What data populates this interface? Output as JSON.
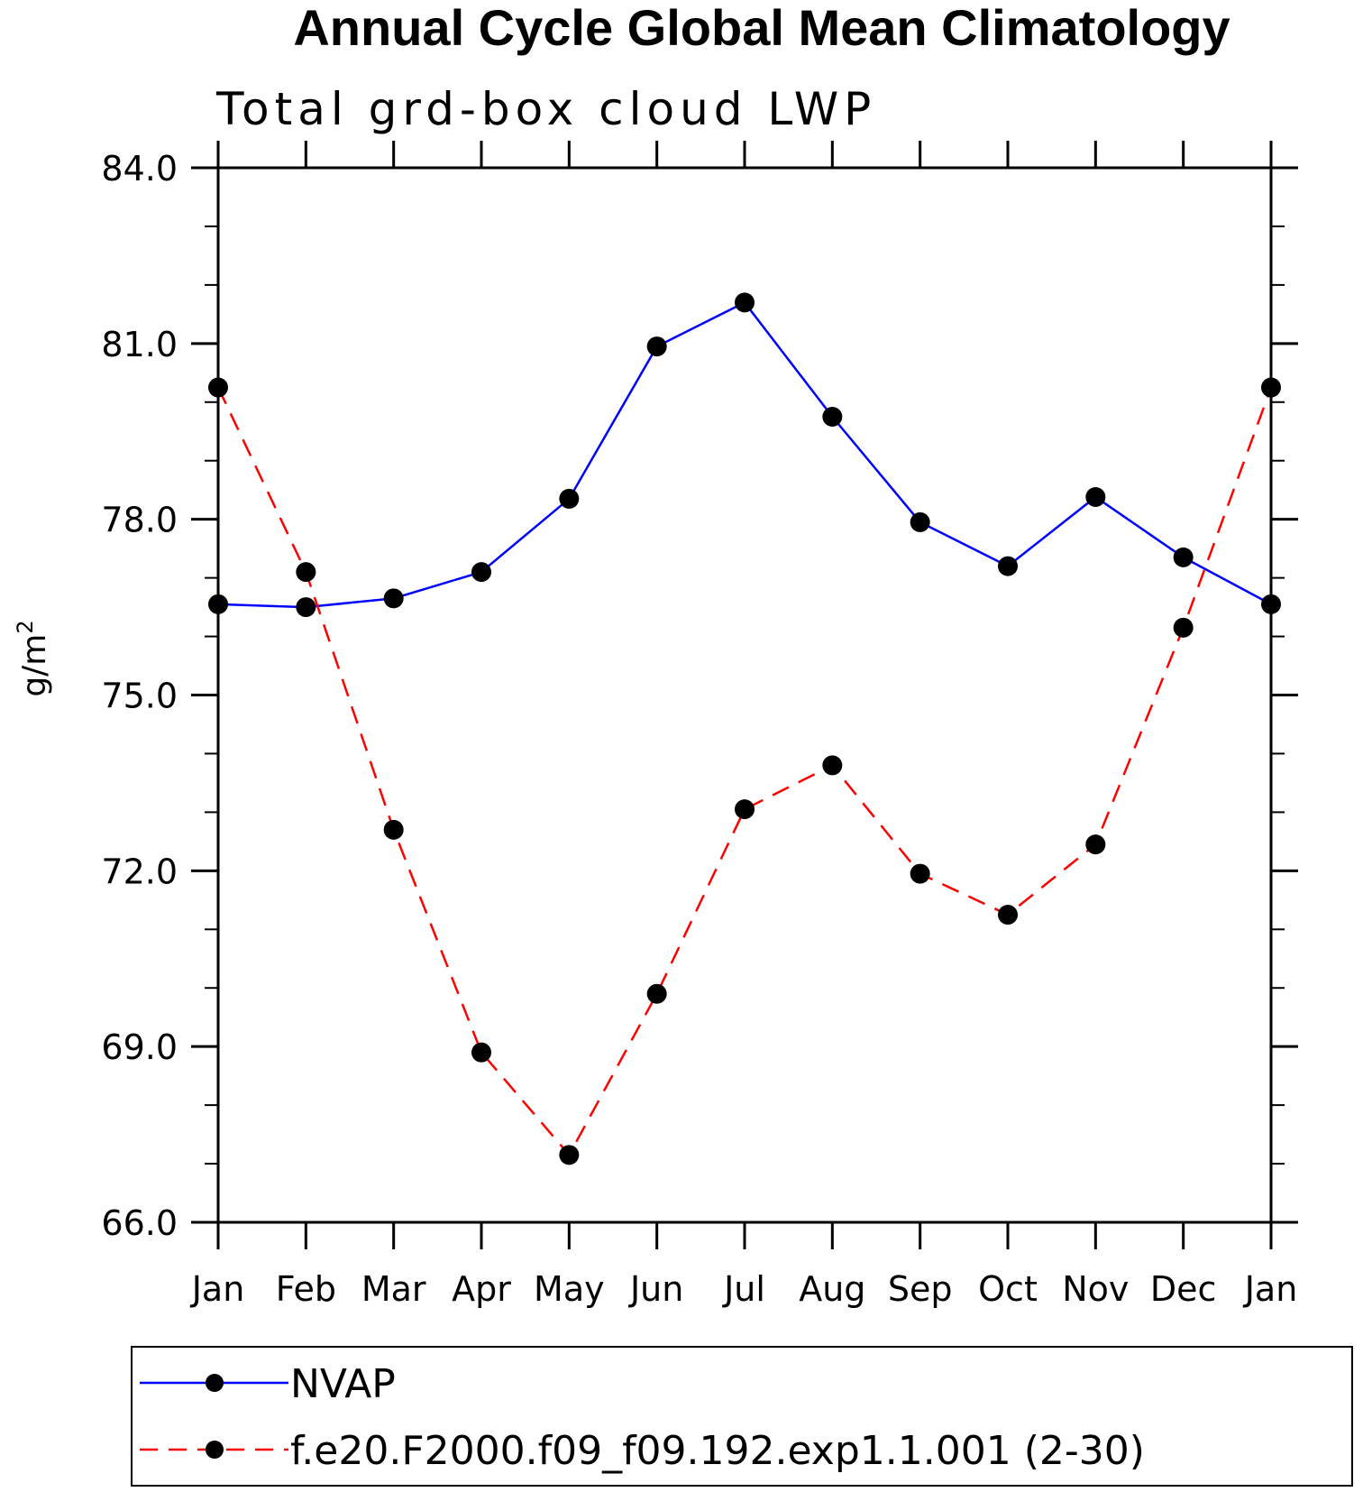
{
  "chart_data": {
    "type": "line",
    "title": "Annual Cycle Global Mean Climatology",
    "subtitle": "Total grd-box cloud LWP",
    "ylabel": "g/m",
    "ylabel_sup": "2",
    "xlabel": "",
    "categories": [
      "Jan",
      "Feb",
      "Mar",
      "Apr",
      "May",
      "Jun",
      "Jul",
      "Aug",
      "Sep",
      "Oct",
      "Nov",
      "Dec",
      "Jan"
    ],
    "ylim": [
      66.0,
      84.0
    ],
    "yticks": [
      66.0,
      69.0,
      72.0,
      75.0,
      78.0,
      81.0,
      84.0
    ],
    "ytick_labels": [
      "66.0",
      "69.0",
      "72.0",
      "75.0",
      "78.0",
      "81.0",
      "84.0"
    ],
    "grid": false,
    "legend_position": "bottom",
    "series": [
      {
        "name": "NVAP",
        "color": "#0000ff",
        "dashed": false,
        "values": [
          76.55,
          76.5,
          76.65,
          77.1,
          78.35,
          80.95,
          81.7,
          79.75,
          77.95,
          77.2,
          78.38,
          77.35,
          76.55
        ]
      },
      {
        "name": "f.e20.F2000.f09_f09.192.exp1.1.001 (2-30)",
        "color": "#ff0000",
        "dashed": true,
        "values": [
          80.25,
          77.1,
          72.7,
          68.9,
          67.15,
          69.9,
          73.05,
          73.8,
          71.95,
          71.25,
          72.45,
          76.15,
          80.25
        ]
      }
    ]
  }
}
